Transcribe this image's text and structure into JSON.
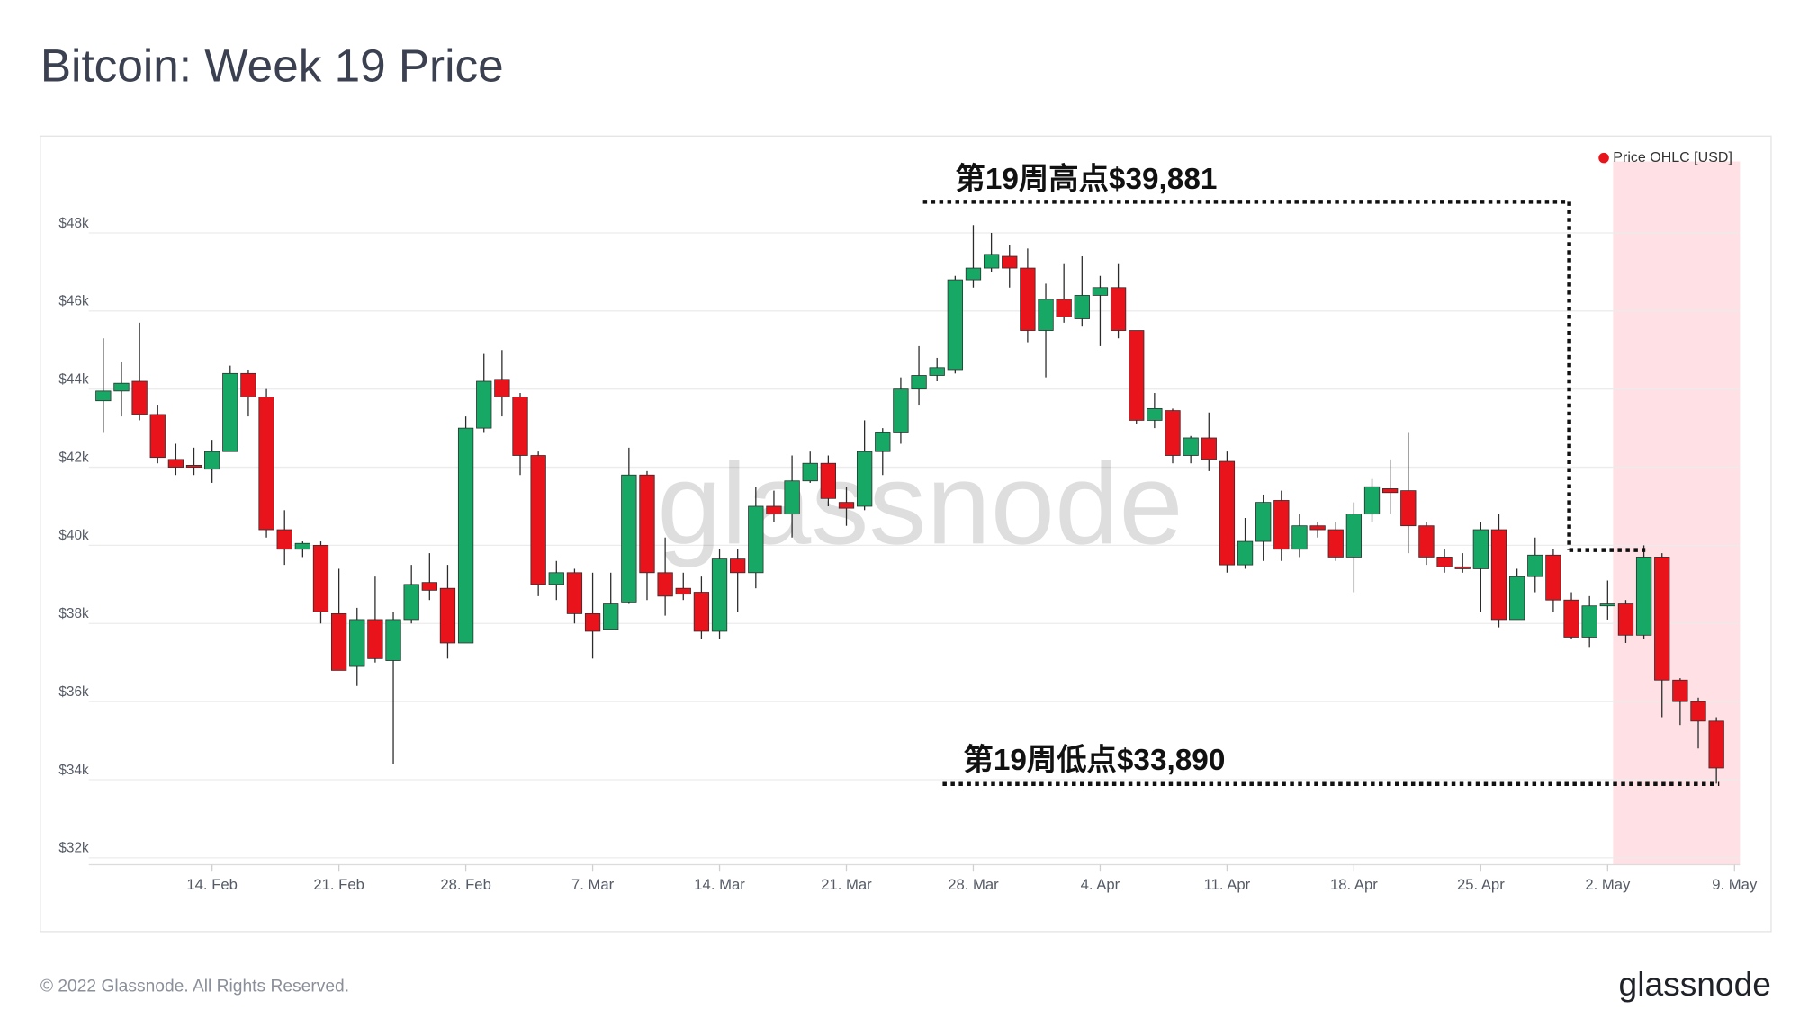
{
  "chart_data": {
    "type": "candlestick",
    "title": "Bitcoin: Week 19 Price",
    "watermark": "glassnode",
    "legend": "top-right",
    "grid": true,
    "up_color": "#17a865",
    "down_color": "#e8131b",
    "highlight_x": [
      122.3,
      129.3
    ],
    "highlight_color": "#ffe0e4",
    "x": [
      39,
      40,
      41,
      42,
      43,
      44,
      45,
      46,
      47,
      48,
      49,
      50,
      51,
      52,
      53,
      54,
      55,
      56,
      57,
      58,
      59,
      60,
      61,
      62,
      63,
      64,
      65,
      66,
      67,
      68,
      69,
      70,
      71,
      72,
      73,
      74,
      75,
      76,
      77,
      78,
      79,
      80,
      81,
      82,
      83,
      84,
      85,
      86,
      87,
      88,
      89,
      90,
      91,
      92,
      93,
      94,
      95,
      96,
      97,
      98,
      99,
      100,
      101,
      102,
      103,
      104,
      105,
      106,
      107,
      108,
      109,
      110,
      111,
      112,
      113,
      114,
      115,
      116,
      117,
      118,
      119,
      120,
      121,
      122,
      123,
      124,
      125,
      126,
      127,
      128
    ],
    "xlim": [
      38.2,
      129.3
    ],
    "xticks": [
      {
        "value": 45,
        "label": "14. Feb"
      },
      {
        "value": 52,
        "label": "21. Feb"
      },
      {
        "value": 59,
        "label": "28. Feb"
      },
      {
        "value": 66,
        "label": "7. Mar"
      },
      {
        "value": 73,
        "label": "14. Mar"
      },
      {
        "value": 80,
        "label": "21. Mar"
      },
      {
        "value": 87,
        "label": "28. Mar"
      },
      {
        "value": 94,
        "label": "4. Apr"
      },
      {
        "value": 101,
        "label": "11. Apr"
      },
      {
        "value": 108,
        "label": "18. Apr"
      },
      {
        "value": 115,
        "label": "25. Apr"
      },
      {
        "value": 122,
        "label": "2. May"
      },
      {
        "value": 129,
        "label": "9. May"
      }
    ],
    "ylim": [
      31823,
      49830
    ],
    "yticks": [
      {
        "value": 32000,
        "label": "$32k"
      },
      {
        "value": 34000,
        "label": "$34k"
      },
      {
        "value": 36000,
        "label": "$36k"
      },
      {
        "value": 38000,
        "label": "$38k"
      },
      {
        "value": 40000,
        "label": "$40k"
      },
      {
        "value": 42000,
        "label": "$42k"
      },
      {
        "value": 44000,
        "label": "$44k"
      },
      {
        "value": 46000,
        "label": "$46k"
      },
      {
        "value": 48000,
        "label": "$48k"
      }
    ],
    "series": [
      {
        "name": "Price OHLC [USD]",
        "color": "#e8131b",
        "open": [
          43700,
          43950,
          44200,
          43350,
          42200,
          42050,
          41950,
          42400,
          44400,
          43800,
          40400,
          39900,
          40000,
          38250,
          36900,
          38100,
          37050,
          38100,
          39050,
          38900,
          37500,
          43000,
          44250,
          43800,
          42300,
          39000,
          39300,
          38250,
          37850,
          38550,
          41800,
          39300,
          38900,
          38800,
          37800,
          39650,
          39300,
          41000,
          40800,
          41650,
          42100,
          41100,
          41000,
          42400,
          42900,
          44000,
          44350,
          44500,
          46800,
          47100,
          47400,
          47100,
          45500,
          46300,
          45800,
          46400,
          46600,
          45500,
          43200,
          43450,
          42300,
          42750,
          42150,
          39500,
          40100,
          41150,
          39900,
          40500,
          40400,
          39700,
          40800,
          41450,
          41400,
          40500,
          39700,
          39450,
          39400,
          40400,
          38100,
          39200,
          39750,
          38600,
          37650,
          38450,
          38500,
          37700,
          39700,
          36550,
          36000,
          35500
        ],
        "high": [
          45300,
          44700,
          45700,
          43600,
          42600,
          42500,
          42700,
          44600,
          44500,
          44000,
          40900,
          40100,
          40100,
          39400,
          38400,
          39200,
          38300,
          39500,
          39800,
          39500,
          43300,
          44900,
          45000,
          43900,
          42400,
          39600,
          39400,
          39300,
          39300,
          42500,
          41900,
          40200,
          39300,
          39200,
          39900,
          39900,
          41500,
          41400,
          42300,
          42400,
          42300,
          41500,
          43200,
          43000,
          44300,
          45100,
          44800,
          46900,
          48200,
          48000,
          47700,
          47600,
          46700,
          47200,
          47400,
          46900,
          47200,
          45500,
          43900,
          43500,
          42800,
          43400,
          42400,
          40700,
          41300,
          41400,
          40800,
          40600,
          40600,
          41100,
          41700,
          42200,
          42900,
          40600,
          39900,
          39800,
          40600,
          40800,
          39400,
          40200,
          39900,
          38800,
          38700,
          39100,
          38600,
          40000,
          39800,
          36600,
          36100,
          35600
        ],
        "low": [
          42900,
          43300,
          43200,
          42100,
          41800,
          41800,
          41600,
          42400,
          43300,
          40200,
          39500,
          39700,
          38000,
          36800,
          36400,
          37000,
          34400,
          38000,
          38600,
          37100,
          37500,
          42900,
          43300,
          41800,
          38700,
          38600,
          38000,
          37100,
          37900,
          38500,
          38600,
          38200,
          38600,
          37600,
          37600,
          38300,
          38900,
          40600,
          40200,
          41600,
          41000,
          40500,
          40900,
          41800,
          42600,
          43600,
          44200,
          44400,
          46600,
          47000,
          46600,
          45200,
          44300,
          45700,
          45600,
          45100,
          45300,
          43100,
          43000,
          42100,
          42100,
          41900,
          39300,
          39400,
          39600,
          39600,
          39700,
          40200,
          39600,
          38800,
          40600,
          40800,
          39800,
          39500,
          39300,
          39300,
          38300,
          37900,
          38100,
          38800,
          38300,
          37600,
          37400,
          38100,
          37500,
          37600,
          35600,
          35400,
          34800,
          33900
        ],
        "close": [
          43950,
          44150,
          43350,
          42250,
          42000,
          42000,
          42400,
          44400,
          43800,
          40400,
          39900,
          40050,
          38300,
          36800,
          38100,
          37100,
          38100,
          39000,
          38850,
          37500,
          43000,
          44200,
          43800,
          42300,
          39000,
          39300,
          38250,
          37800,
          38500,
          41800,
          39300,
          38700,
          38750,
          37800,
          39650,
          39300,
          41000,
          40800,
          41650,
          42100,
          41200,
          40950,
          42400,
          42900,
          44000,
          44350,
          44550,
          46800,
          47100,
          47450,
          47100,
          45500,
          46300,
          45850,
          46400,
          46600,
          45500,
          43200,
          43500,
          42300,
          42750,
          42200,
          39500,
          40100,
          41100,
          39900,
          40500,
          40400,
          39700,
          40800,
          41500,
          41350,
          40500,
          39700,
          39450,
          39400,
          40400,
          38100,
          39200,
          39750,
          38600,
          37650,
          38450,
          38500,
          37700,
          39700,
          36550,
          36000,
          35500,
          34300
        ]
      }
    ],
    "annotations": [
      {
        "label": "第19周高点$39,881",
        "value": 39881
      },
      {
        "label": "第19周低点$33,890",
        "value": 33890
      }
    ]
  },
  "footer": {
    "copyright": "© 2022 Glassnode. All Rights Reserved.",
    "logo": "glassnode"
  }
}
